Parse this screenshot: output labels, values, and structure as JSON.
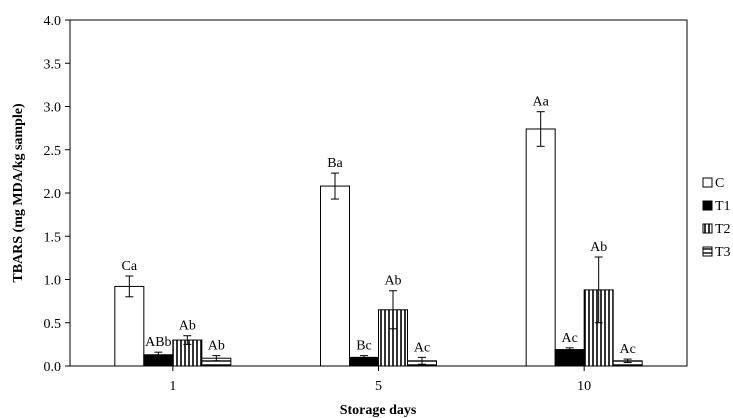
{
  "chart_data": {
    "type": "bar",
    "title": "",
    "xlabel": "Storage days",
    "ylabel": "TBARS (mg MDA/kg sample)",
    "categories": [
      "1",
      "5",
      "10"
    ],
    "ylim": [
      0,
      4.0
    ],
    "yticks": [
      "0.0",
      "0.5",
      "1.0",
      "1.5",
      "2.0",
      "2.5",
      "3.0",
      "3.5",
      "4.0"
    ],
    "grid": false,
    "legend_position": "right",
    "series": [
      {
        "name": "C",
        "pattern": "empty",
        "values": [
          0.92,
          2.08,
          2.74
        ],
        "errors": [
          0.12,
          0.15,
          0.2
        ],
        "labels": [
          "Ca",
          "Ba",
          "Aa"
        ]
      },
      {
        "name": "T1",
        "pattern": "solid",
        "values": [
          0.13,
          0.1,
          0.19
        ],
        "errors": [
          0.03,
          0.02,
          0.02
        ],
        "labels": [
          "ABb",
          "Bc",
          "Ac"
        ]
      },
      {
        "name": "T2",
        "pattern": "vertical",
        "values": [
          0.3,
          0.65,
          0.88
        ],
        "errors": [
          0.05,
          0.22,
          0.38
        ],
        "labels": [
          "Ab",
          "Ab",
          "Ab"
        ]
      },
      {
        "name": "T3",
        "pattern": "horizontal",
        "values": [
          0.09,
          0.06,
          0.06
        ],
        "errors": [
          0.03,
          0.04,
          0.02
        ],
        "labels": [
          "Ab",
          "Ac",
          "Ac"
        ]
      }
    ]
  }
}
